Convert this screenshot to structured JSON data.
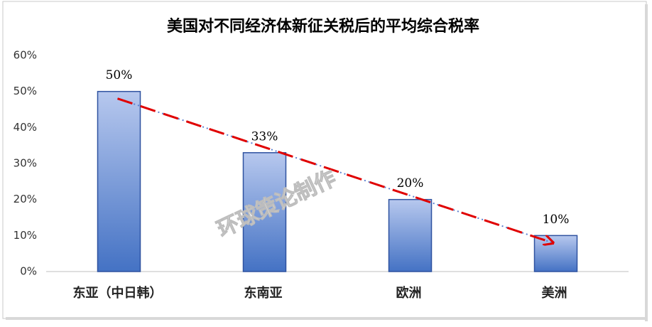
{
  "chart_data": {
    "type": "bar",
    "title": "美国对不同经济体新征关税后的平均综合税率",
    "categories": [
      "东亚（中日韩）",
      "东南亚",
      "欧洲",
      "美洲"
    ],
    "values": [
      50,
      33,
      20,
      10
    ],
    "value_labels": [
      "50%",
      "33%",
      "20%",
      "10%"
    ],
    "color": "#4472c4",
    "ylim": [
      0,
      60
    ],
    "yticks": [
      {
        "value": 0,
        "label": "0%"
      },
      {
        "value": 10,
        "label": "10%"
      },
      {
        "value": 20,
        "label": "20%"
      },
      {
        "value": 30,
        "label": "30%"
      },
      {
        "value": 40,
        "label": "40%"
      },
      {
        "value": 50,
        "label": "50%"
      },
      {
        "value": 60,
        "label": "60%"
      }
    ],
    "grid": false,
    "watermark": "环球策论制作"
  }
}
